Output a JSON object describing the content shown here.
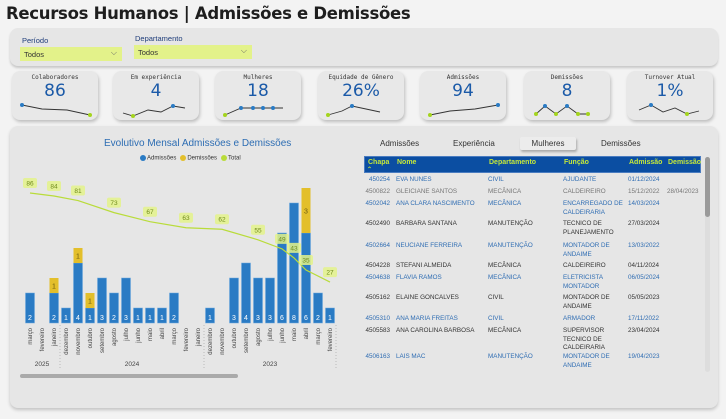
{
  "title": "Recursos Humanos | Admissões e Demissões",
  "filters": {
    "periodo": {
      "label": "Período",
      "value": "Todos"
    },
    "departamento": {
      "label": "Departamento",
      "value": "Todos"
    }
  },
  "kpis": [
    {
      "label": "Colaboradores",
      "value": "86"
    },
    {
      "label": "Em experiência",
      "value": "4"
    },
    {
      "label": "Mulheres",
      "value": "18"
    },
    {
      "label": "Equidade de Gênero",
      "value": "26%"
    },
    {
      "label": "Admissões",
      "value": "94"
    },
    {
      "label": "Demissões",
      "value": "8"
    },
    {
      "label": "Turnover Atual",
      "value": "1%"
    }
  ],
  "colors": {
    "admissoes": "#2a7bc4",
    "demissoes": "#e3bf2b",
    "total": "#b9dc3a",
    "header": "#0b4ea2",
    "header_text": "#c5e83a"
  },
  "tabs": [
    "Admissões",
    "Experiência",
    "Mulheres",
    "Demissões"
  ],
  "selected_tab": "Mulheres",
  "chart_data": {
    "type": "bar+line",
    "title": "Evolutivo Mensal Admissões e Demissões",
    "legend": [
      "Admissões",
      "Demissões",
      "Total"
    ],
    "legend_position": "top-center",
    "categories": [
      "março",
      "fevereiro",
      "janeiro",
      "dezembro",
      "novembro",
      "outubro",
      "setembro",
      "agosto",
      "julho",
      "junho",
      "maio",
      "abril",
      "março",
      "fevereiro",
      "janeiro",
      "dezembro",
      "novembro",
      "outubro",
      "setembro",
      "agosto",
      "julho",
      "junho",
      "maio",
      "abril",
      "março",
      "fevereiro"
    ],
    "years": [
      {
        "label": "2025",
        "from": 0,
        "to": 2
      },
      {
        "label": "2024",
        "from": 3,
        "to": 14
      },
      {
        "label": "2023",
        "from": 15,
        "to": 25
      }
    ],
    "series": [
      {
        "name": "Admissões",
        "values": [
          2,
          0,
          2,
          1,
          4,
          1,
          3,
          2,
          3,
          1,
          1,
          1,
          2,
          0,
          0,
          1,
          0,
          3,
          4,
          3,
          3,
          6,
          8,
          6,
          2,
          1
        ]
      },
      {
        "name": "Demissões",
        "values": [
          0,
          0,
          1,
          0,
          1,
          1,
          0,
          0,
          0,
          0,
          0,
          0,
          0,
          0,
          0,
          0,
          0,
          0,
          0,
          0,
          0,
          0,
          0,
          3,
          0,
          0
        ]
      },
      {
        "name": "Total",
        "values": [
          86,
          null,
          84,
          null,
          81,
          null,
          null,
          73,
          null,
          null,
          67,
          null,
          null,
          63,
          null,
          null,
          62,
          null,
          null,
          55,
          null,
          49,
          43,
          35,
          null,
          27
        ]
      }
    ]
  },
  "table": {
    "columns": [
      "Chapa",
      "Nome",
      "Departamento",
      "Função",
      "Admissão",
      "Demissão"
    ],
    "rows": [
      {
        "chapa": "450254",
        "nome": "EVA NUNES",
        "dep": "CIVIL",
        "funcao": "AJUDANTE",
        "adm": "01/12/2024",
        "dem": ""
      },
      {
        "chapa": "4500822",
        "nome": "GLEICIANE SANTOS",
        "dep": "MECÂNICA",
        "funcao": "CALDEIREIRO",
        "adm": "15/12/2022",
        "dem": "28/04/2023"
      },
      {
        "chapa": "4502042",
        "nome": "ANA CLARA NASCIMENTO",
        "dep": "MECÂNICA",
        "funcao": "ENCARREGADO DE CALDEIRARIA",
        "adm": "14/03/2024",
        "dem": ""
      },
      {
        "chapa": "4502490",
        "nome": "BARBARA SANTANA",
        "dep": "MANUTENÇÃO",
        "funcao": "TECNICO DE PLANEJAMENTO",
        "adm": "27/03/2024",
        "dem": ""
      },
      {
        "chapa": "4502664",
        "nome": "NEUCIANE FERREIRA",
        "dep": "MANUTENÇÃO",
        "funcao": "MONTADOR DE ANDAIME",
        "adm": "13/03/2022",
        "dem": ""
      },
      {
        "chapa": "4504228",
        "nome": "STEFANI ALMEIDA",
        "dep": "MECÂNICA",
        "funcao": "CALDEIREIRO",
        "adm": "04/11/2024",
        "dem": ""
      },
      {
        "chapa": "4504638",
        "nome": "FLAVIA RAMOS",
        "dep": "MECÂNICA",
        "funcao": "ELETRICISTA MONTADOR",
        "adm": "06/05/2024",
        "dem": ""
      },
      {
        "chapa": "4505162",
        "nome": "ELAINE GONCALVES",
        "dep": "CIVIL",
        "funcao": "MONTADOR DE ANDAIME",
        "adm": "05/05/2023",
        "dem": ""
      },
      {
        "chapa": "4505310",
        "nome": "ANA MARIA FREITAS",
        "dep": "CIVIL",
        "funcao": "ARMADOR",
        "adm": "17/11/2022",
        "dem": ""
      },
      {
        "chapa": "4505583",
        "nome": "ANA CAROLINA BARBOSA",
        "dep": "MECÂNICA",
        "funcao": "SUPERVISOR TECNICO DE CALDEIRARIA",
        "adm": "23/04/2024",
        "dem": ""
      },
      {
        "chapa": "4506163",
        "nome": "LAIS MAC",
        "dep": "MANUTENÇÃO",
        "funcao": "MONTADOR DE ANDAIME",
        "adm": "19/04/2023",
        "dem": ""
      }
    ]
  }
}
